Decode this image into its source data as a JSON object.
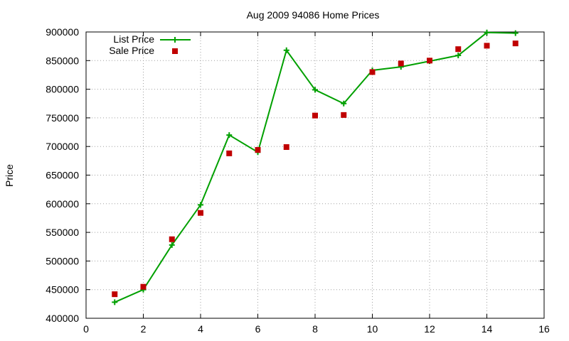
{
  "chart_data": {
    "type": "line",
    "title": "Aug 2009 94086 Home Prices",
    "xlabel": "",
    "ylabel": "Price",
    "xlim": [
      0,
      16
    ],
    "ylim": [
      400000,
      900000
    ],
    "x_ticks": [
      0,
      2,
      4,
      6,
      8,
      10,
      12,
      14,
      16
    ],
    "y_ticks": [
      400000,
      450000,
      500000,
      550000,
      600000,
      650000,
      700000,
      750000,
      800000,
      850000,
      900000
    ],
    "grid": true,
    "legend_position": "top-left",
    "series": [
      {
        "name": "List Price",
        "style": "line-with-plus-markers",
        "color": "#00a000",
        "x": [
          1,
          2,
          3,
          4,
          5,
          6,
          7,
          8,
          9,
          10,
          11,
          12,
          13,
          14,
          15
        ],
        "y": [
          428000,
          450000,
          528000,
          598000,
          720000,
          690000,
          868000,
          799000,
          775000,
          833000,
          839000,
          849000,
          859000,
          899000,
          898000
        ]
      },
      {
        "name": "Sale Price",
        "style": "square-markers",
        "color": "#c00000",
        "x": [
          1,
          2,
          3,
          4,
          5,
          6,
          7,
          8,
          9,
          10,
          11,
          12,
          13,
          14,
          15
        ],
        "y": [
          442000,
          455000,
          538000,
          584000,
          688000,
          694000,
          699000,
          754000,
          755000,
          830000,
          845000,
          850000,
          870000,
          876000,
          880000
        ]
      }
    ]
  }
}
